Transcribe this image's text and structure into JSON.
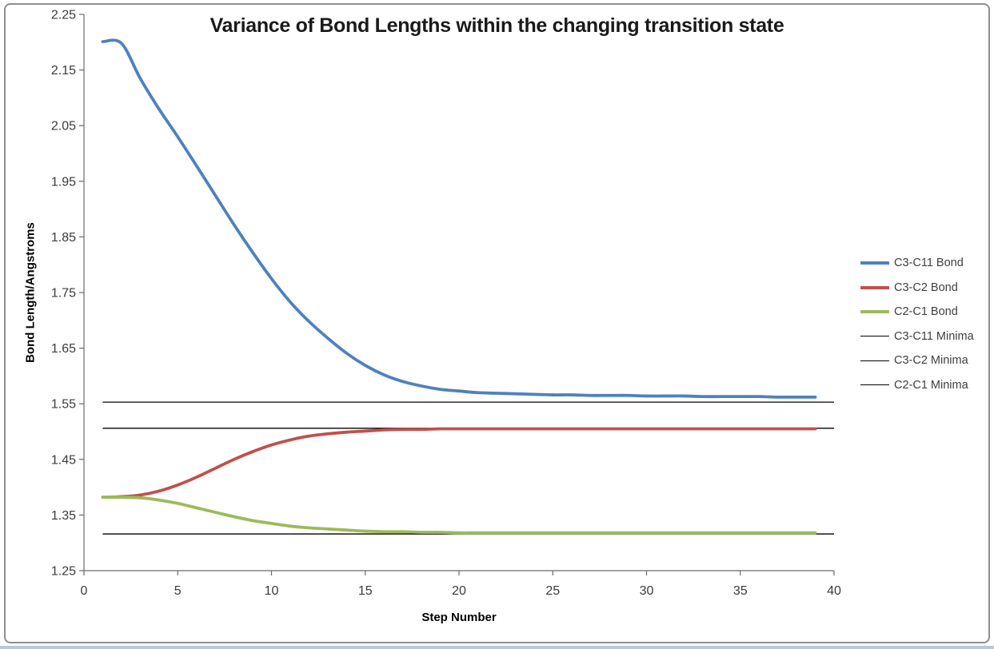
{
  "chart_data": {
    "type": "line",
    "title": "Variance of Bond Lengths within the changing transition state",
    "xlabel": "Step Number",
    "ylabel": "Bond Length/Angstroms",
    "xlim": [
      0,
      40
    ],
    "ylim": [
      1.25,
      2.25
    ],
    "grid": false,
    "legend_position": "right",
    "x_tick_values": [
      0,
      5,
      10,
      15,
      20,
      25,
      30,
      35,
      40
    ],
    "x_tick_labels": [
      "0",
      "5",
      "10",
      "15",
      "20",
      "25",
      "30",
      "35",
      "40"
    ],
    "y_tick_values": [
      2.25,
      2.15,
      2.05,
      1.95,
      1.85,
      1.75,
      1.65,
      1.55,
      1.45,
      1.35,
      1.25
    ],
    "y_tick_labels": [
      "2.25",
      "2.15",
      "2.05",
      "1.95",
      "1.85",
      "1.75",
      "1.65",
      "1.55",
      "1.45",
      "1.35",
      "1.25"
    ],
    "x_start": 1,
    "series": [
      {
        "name": "C3-C11 Bond",
        "color": "#4F81BD",
        "width": 3.8,
        "values": [
          2.201,
          2.198,
          2.135,
          2.08,
          2.03,
          1.978,
          1.925,
          1.872,
          1.822,
          1.775,
          1.733,
          1.698,
          1.668,
          1.641,
          1.619,
          1.602,
          1.59,
          1.582,
          1.576,
          1.573,
          1.57,
          1.569,
          1.568,
          1.567,
          1.566,
          1.566,
          1.565,
          1.565,
          1.565,
          1.564,
          1.564,
          1.564,
          1.563,
          1.563,
          1.563,
          1.563,
          1.562,
          1.562,
          1.562
        ]
      },
      {
        "name": "C3-C2 Bond",
        "color": "#C0504D",
        "width": 3.8,
        "values": [
          1.382,
          1.383,
          1.386,
          1.393,
          1.404,
          1.418,
          1.434,
          1.45,
          1.464,
          1.476,
          1.485,
          1.492,
          1.496,
          1.499,
          1.501,
          1.503,
          1.504,
          1.504,
          1.505,
          1.505,
          1.505,
          1.505,
          1.505,
          1.505,
          1.505,
          1.505,
          1.505,
          1.505,
          1.505,
          1.505,
          1.505,
          1.505,
          1.505,
          1.505,
          1.505,
          1.505,
          1.505,
          1.505,
          1.505
        ]
      },
      {
        "name": "C2-C1 Bond",
        "color": "#9BBB59",
        "width": 3.8,
        "values": [
          1.382,
          1.382,
          1.381,
          1.377,
          1.371,
          1.363,
          1.355,
          1.347,
          1.34,
          1.335,
          1.33,
          1.327,
          1.325,
          1.323,
          1.321,
          1.32,
          1.32,
          1.319,
          1.319,
          1.318,
          1.318,
          1.318,
          1.318,
          1.318,
          1.318,
          1.318,
          1.318,
          1.318,
          1.318,
          1.318,
          1.318,
          1.318,
          1.318,
          1.318,
          1.318,
          1.318,
          1.318,
          1.318,
          1.318
        ]
      },
      {
        "name": "C3-C11 Minima",
        "color": "#000000",
        "width": 1.3,
        "constant": 1.553,
        "x_range": [
          1,
          40
        ]
      },
      {
        "name": "C3-C2 Minima",
        "color": "#000000",
        "width": 1.3,
        "constant": 1.506,
        "x_range": [
          1,
          40
        ]
      },
      {
        "name": "C2-C1 Minima",
        "color": "#000000",
        "width": 1.3,
        "constant": 1.316,
        "x_range": [
          1,
          40
        ]
      }
    ]
  },
  "colors": {
    "frame_border": "#8f8f8f",
    "bottom_strip": "#aecbe5",
    "axis_line": "#6b6b6b",
    "tick_label": "#3b3b3b",
    "legend_text": "#3f3f3f",
    "title_text": "#1a1a1a",
    "background": "#ffffff"
  }
}
